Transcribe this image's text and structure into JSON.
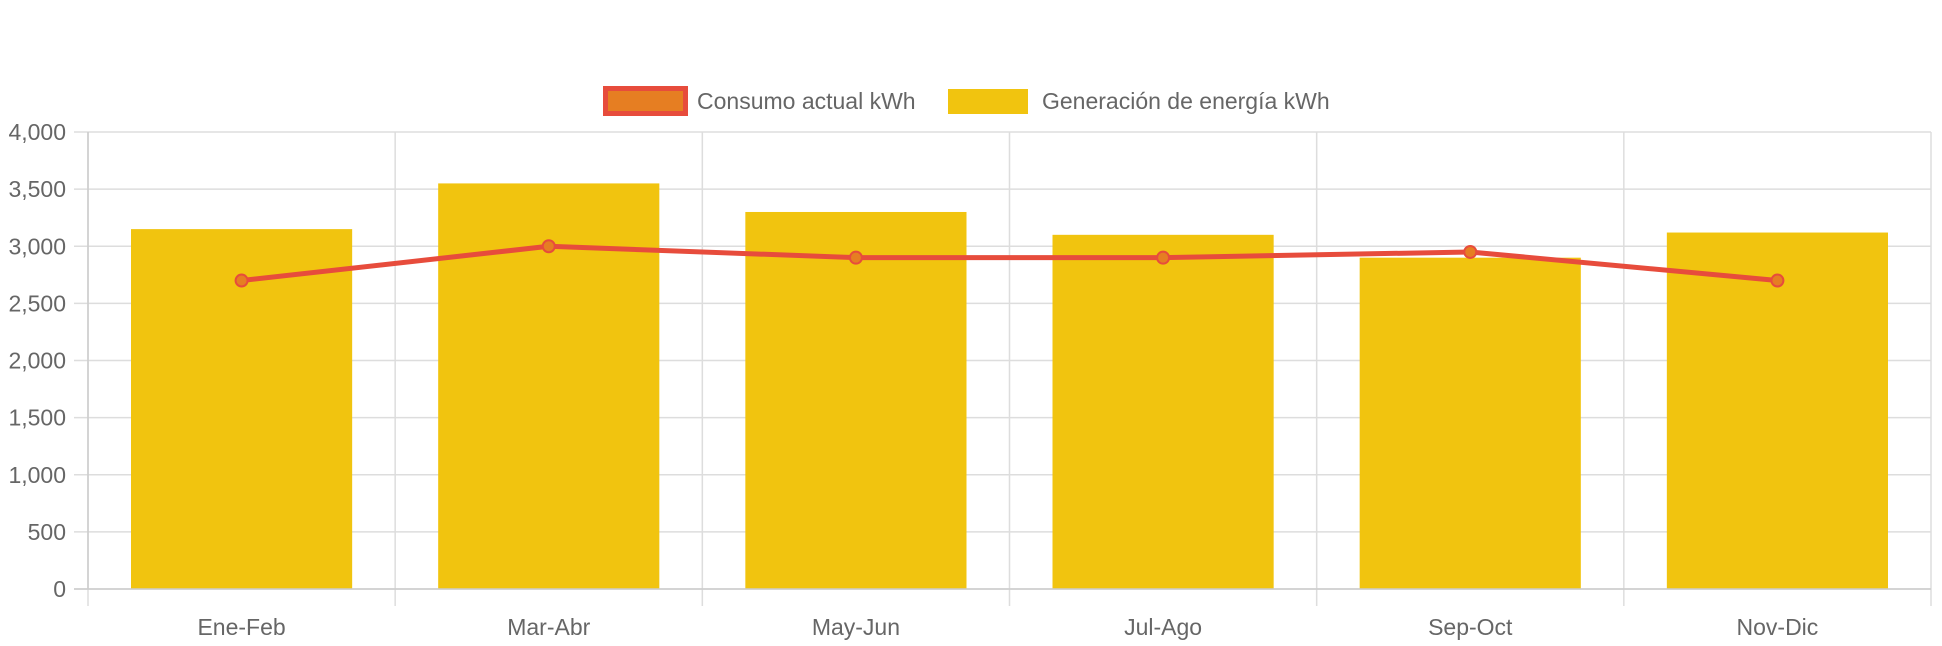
{
  "chart_data": {
    "type": "bar",
    "categories": [
      "Ene-Feb",
      "Mar-Abr",
      "May-Jun",
      "Jul-Ago",
      "Sep-Oct",
      "Nov-Dic"
    ],
    "series": [
      {
        "name": "Consumo actual kWh",
        "type": "line",
        "values": [
          2700,
          3000,
          2900,
          2900,
          2950,
          2700
        ],
        "color": "#e74c3c",
        "point_color": "#e67e22"
      },
      {
        "name": "Generación de energía kWh",
        "type": "bar",
        "values": [
          3150,
          3550,
          3300,
          3100,
          2900,
          3120
        ],
        "color": "#f1c40f"
      }
    ],
    "ylim": [
      0,
      4000
    ],
    "yticks": [
      0,
      500,
      1000,
      1500,
      2000,
      2500,
      3000,
      3500,
      4000
    ],
    "ytick_labels": [
      "0",
      "500",
      "1,000",
      "1,500",
      "2,000",
      "2,500",
      "3,000",
      "3,500",
      "4,000"
    ],
    "grid": true,
    "legend_position": "top"
  }
}
